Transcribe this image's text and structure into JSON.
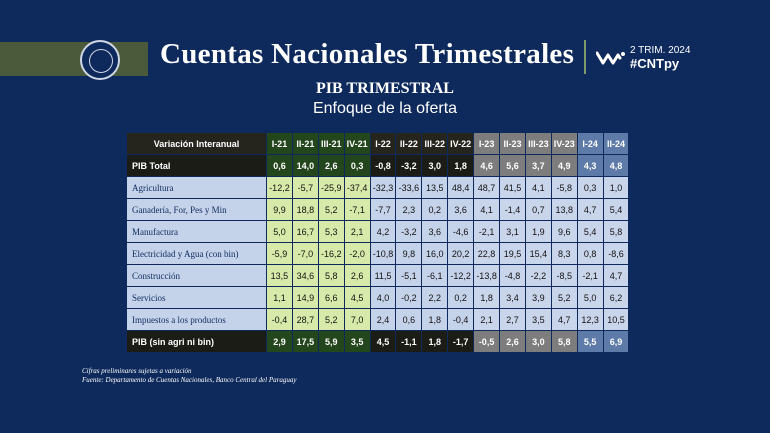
{
  "header": {
    "title": "Cuentas Nacionales Trimestrales",
    "period": "2 TRIM. 2024",
    "hashtag": "#CNTpy"
  },
  "subtitle": "PIB TRIMESTRAL",
  "subtitle2": "Enfoque de la oferta",
  "table": {
    "corner": "Variación Interanual",
    "columns": [
      "I-21",
      "II-21",
      "III-21",
      "IV-21",
      "I-22",
      "II-22",
      "III-22",
      "IV-22",
      "I-23",
      "II-23",
      "III-23",
      "IV-23",
      "I-24",
      "II-24"
    ],
    "total": {
      "label": "PIB Total",
      "values": [
        "0,6",
        "14,0",
        "2,6",
        "0,3",
        "-0,8",
        "-3,2",
        "3,0",
        "1,8",
        "4,6",
        "5,6",
        "3,7",
        "4,9",
        "4,3",
        "4,8"
      ]
    },
    "rows": [
      {
        "label": "Agricultura",
        "values": [
          "-12,2",
          "-5,7",
          "-25,9",
          "-37,4",
          "-32,3",
          "-33,6",
          "13,5",
          "48,4",
          "48,7",
          "41,5",
          "4,1",
          "-5,8",
          "0,3",
          "1,0"
        ]
      },
      {
        "label": "Ganadería, For, Pes y Min",
        "values": [
          "9,9",
          "18,8",
          "5,2",
          "-7,1",
          "-7,7",
          "2,3",
          "0,2",
          "3,6",
          "4,1",
          "-1,4",
          "0,7",
          "13,8",
          "4,7",
          "5,4"
        ]
      },
      {
        "label": "Manufactura",
        "values": [
          "5,0",
          "16,7",
          "5,3",
          "2,1",
          "4,2",
          "-3,2",
          "3,6",
          "-4,6",
          "-2,1",
          "3,1",
          "1,9",
          "9,6",
          "5,4",
          "5,8"
        ]
      },
      {
        "label": "Electricidad y Agua (con bin)",
        "values": [
          "-5,9",
          "-7,0",
          "-16,2",
          "-2,0",
          "-10,8",
          "9,8",
          "16,0",
          "20,2",
          "22,8",
          "19,5",
          "15,4",
          "8,3",
          "0,8",
          "-8,6"
        ]
      },
      {
        "label": "Construcción",
        "values": [
          "13,5",
          "34,6",
          "5,8",
          "2,6",
          "11,5",
          "-5,1",
          "-6,1",
          "-12,2",
          "-13,8",
          "-4,8",
          "-2,2",
          "-8,5",
          "-2,1",
          "4,7"
        ]
      },
      {
        "label": "Servicios",
        "values": [
          "1,1",
          "14,9",
          "6,6",
          "4,5",
          "4,0",
          "-0,2",
          "2,2",
          "0,2",
          "1,8",
          "3,4",
          "3,9",
          "5,2",
          "5,0",
          "6,2"
        ]
      },
      {
        "label": "Impuestos a los productos",
        "values": [
          "-0,4",
          "28,7",
          "5,2",
          "7,0",
          "2,4",
          "0,6",
          "1,8",
          "-0,4",
          "2,1",
          "2,7",
          "3,5",
          "4,7",
          "12,3",
          "10,5"
        ]
      }
    ],
    "footer_total": {
      "label": "PIB (sin agri ni bin)",
      "values": [
        "2,9",
        "17,5",
        "5,9",
        "3,5",
        "4,5",
        "-1,1",
        "1,8",
        "-1,7",
        "-0,5",
        "2,6",
        "3,0",
        "5,8",
        "5,5",
        "6,9"
      ]
    }
  },
  "notes": {
    "line1": "Cifras preliminares sujetas a variación",
    "line2": "Fuente: Departamento de Cuentas Nacionales, Banco Central del Paraguay"
  },
  "colors": {
    "background": "#0e2a5c",
    "y21": "#24461c",
    "y23": "#7d7d7d",
    "y24": "#5e7aa8",
    "accent_band": "#4a5a3a"
  }
}
